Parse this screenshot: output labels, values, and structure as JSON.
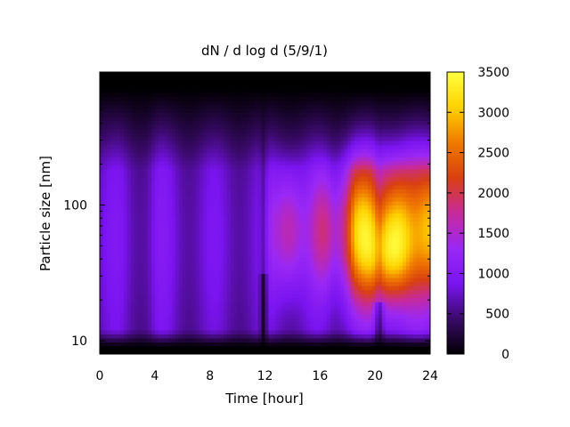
{
  "chart_data": {
    "type": "heatmap",
    "title": "dN / d log d (5/9/1)",
    "xlabel": "Time [hour]",
    "ylabel": "Particle size [nm]",
    "xlim": [
      0,
      24
    ],
    "x_ticks": [
      0,
      4,
      8,
      12,
      16,
      20,
      24
    ],
    "y_scale": "log",
    "ylim": [
      8,
      950
    ],
    "y_ticks": [
      10,
      100
    ],
    "colorbar": {
      "min": 0,
      "max": 3500,
      "ticks": [
        0,
        500,
        1000,
        1500,
        2000,
        2500,
        3000,
        3500
      ],
      "colormap": [
        "#000000",
        "#3a0a6a",
        "#7a14f0",
        "#9a28f5",
        "#c72a9a",
        "#d94010",
        "#f07a00",
        "#ffd200",
        "#ffff40"
      ]
    },
    "grid": false,
    "features": [
      {
        "description_free": true,
        "time_range": [
          0,
          11.5
        ],
        "size_range": [
          10,
          300
        ],
        "level": 900
      },
      {
        "time_range": [
          12,
          18
        ],
        "size_range": [
          40,
          150
        ],
        "level": 1700
      },
      {
        "time_range": [
          18,
          24
        ],
        "size_range": [
          20,
          250
        ],
        "level": 2400
      },
      {
        "time_center": 20.8,
        "size_center": 40,
        "level": 3000
      }
    ]
  }
}
